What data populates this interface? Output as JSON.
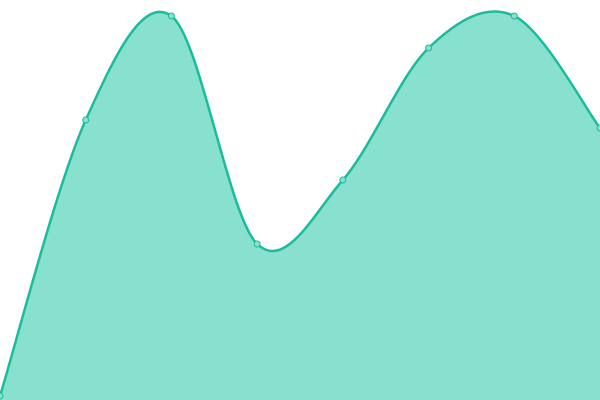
{
  "chart_data": {
    "type": "area",
    "categories": [
      null,
      null,
      null,
      null,
      null,
      null,
      null,
      null
    ],
    "values": [
      1,
      70,
      96,
      39,
      55,
      88,
      96,
      68
    ],
    "ylim": [
      0,
      100
    ],
    "color": "#1abc9c",
    "fill_color": "#88e0ce",
    "smooth": true,
    "markers": true
  }
}
